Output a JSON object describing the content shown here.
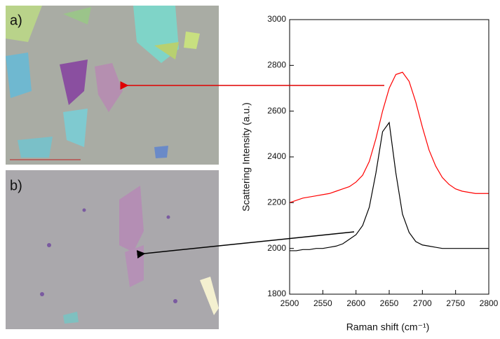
{
  "chart_data": {
    "type": "line",
    "panel_labels": [
      "a)",
      "b)"
    ],
    "xlabel": "Raman shift (cm⁻¹)",
    "ylabel": "Scattering Intensity (a.u.)",
    "x": [
      2500,
      2510,
      2520,
      2530,
      2540,
      2550,
      2560,
      2570,
      2580,
      2590,
      2600,
      2610,
      2620,
      2630,
      2640,
      2650,
      2660,
      2670,
      2680,
      2690,
      2700,
      2710,
      2720,
      2730,
      2740,
      2750,
      2760,
      2770,
      2780,
      2790,
      2800
    ],
    "series": [
      {
        "color": "#ff0000",
        "values": [
          2200,
          2210,
          2220,
          2225,
          2230,
          2235,
          2240,
          2250,
          2260,
          2270,
          2290,
          2320,
          2380,
          2480,
          2600,
          2700,
          2760,
          2770,
          2730,
          2640,
          2530,
          2430,
          2360,
          2310,
          2280,
          2260,
          2250,
          2245,
          2240,
          2240,
          2240
        ]
      },
      {
        "color": "#000000",
        "values": [
          1990,
          1990,
          1995,
          1995,
          2000,
          2000,
          2005,
          2010,
          2020,
          2040,
          2060,
          2100,
          2180,
          2330,
          2510,
          2550,
          2330,
          2150,
          2070,
          2030,
          2015,
          2010,
          2005,
          2000,
          2000,
          2000,
          2000,
          2000,
          2000,
          2000,
          2000
        ]
      }
    ],
    "xlim": [
      2500,
      2800
    ],
    "xticks": [
      2500,
      2550,
      2600,
      2650,
      2700,
      2750,
      2800
    ],
    "ylim": [
      1800,
      3000
    ],
    "yticks": [
      1800,
      2000,
      2200,
      2400,
      2600,
      2800,
      3000
    ]
  }
}
